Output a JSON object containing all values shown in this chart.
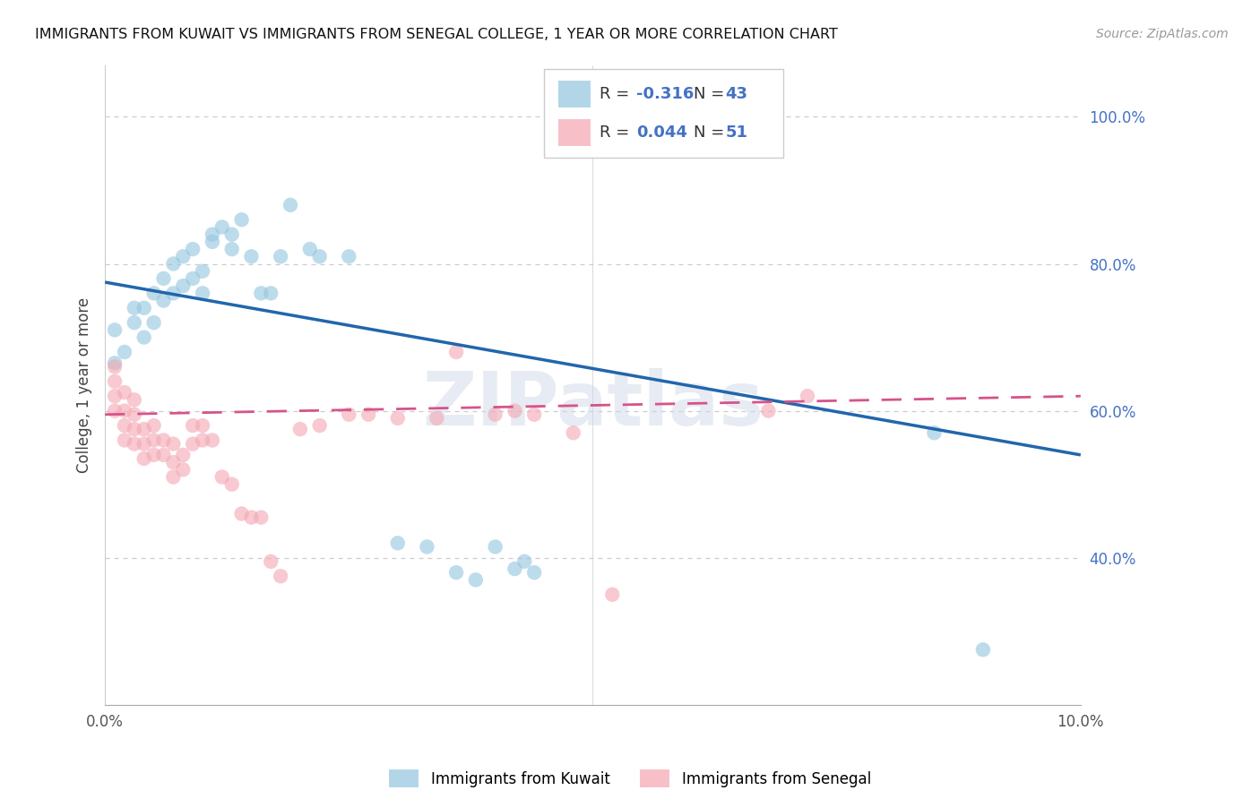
{
  "title": "IMMIGRANTS FROM KUWAIT VS IMMIGRANTS FROM SENEGAL COLLEGE, 1 YEAR OR MORE CORRELATION CHART",
  "source": "Source: ZipAtlas.com",
  "ylabel": "College, 1 year or more",
  "xlim": [
    0.0,
    0.1
  ],
  "ylim": [
    0.2,
    1.07
  ],
  "yticks": [
    0.4,
    0.6,
    0.8,
    1.0
  ],
  "ytick_labels": [
    "40.0%",
    "60.0%",
    "80.0%",
    "100.0%"
  ],
  "kuwait_R": "-0.316",
  "kuwait_N": "43",
  "senegal_R": "0.044",
  "senegal_N": "51",
  "kuwait_color": "#92c5de",
  "senegal_color": "#f4a6b2",
  "kuwait_line_color": "#2166ac",
  "senegal_line_color": "#d6538a",
  "background_color": "#ffffff",
  "watermark": "ZIPatlas",
  "kuwait_line_y0": 0.775,
  "kuwait_line_y1": 0.54,
  "senegal_line_y0": 0.595,
  "senegal_line_y1": 0.62,
  "kuwait_x": [
    0.001,
    0.002,
    0.001,
    0.003,
    0.003,
    0.004,
    0.004,
    0.005,
    0.005,
    0.006,
    0.006,
    0.007,
    0.007,
    0.008,
    0.008,
    0.009,
    0.009,
    0.01,
    0.01,
    0.011,
    0.011,
    0.012,
    0.013,
    0.013,
    0.014,
    0.015,
    0.016,
    0.017,
    0.018,
    0.019,
    0.021,
    0.022,
    0.025,
    0.03,
    0.033,
    0.036,
    0.038,
    0.04,
    0.042,
    0.043,
    0.044,
    0.085,
    0.09
  ],
  "kuwait_y": [
    0.665,
    0.68,
    0.71,
    0.72,
    0.74,
    0.7,
    0.74,
    0.72,
    0.76,
    0.75,
    0.78,
    0.76,
    0.8,
    0.77,
    0.81,
    0.78,
    0.82,
    0.76,
    0.79,
    0.83,
    0.84,
    0.85,
    0.82,
    0.84,
    0.86,
    0.81,
    0.76,
    0.76,
    0.81,
    0.88,
    0.82,
    0.81,
    0.81,
    0.42,
    0.415,
    0.38,
    0.37,
    0.415,
    0.385,
    0.395,
    0.38,
    0.57,
    0.275
  ],
  "senegal_x": [
    0.001,
    0.001,
    0.001,
    0.001,
    0.002,
    0.002,
    0.002,
    0.002,
    0.003,
    0.003,
    0.003,
    0.003,
    0.004,
    0.004,
    0.004,
    0.005,
    0.005,
    0.005,
    0.006,
    0.006,
    0.007,
    0.007,
    0.007,
    0.008,
    0.008,
    0.009,
    0.009,
    0.01,
    0.01,
    0.011,
    0.012,
    0.013,
    0.014,
    0.015,
    0.016,
    0.017,
    0.018,
    0.02,
    0.022,
    0.025,
    0.027,
    0.03,
    0.034,
    0.036,
    0.04,
    0.042,
    0.044,
    0.048,
    0.052,
    0.068,
    0.072
  ],
  "senegal_y": [
    0.6,
    0.62,
    0.64,
    0.66,
    0.56,
    0.58,
    0.6,
    0.625,
    0.555,
    0.575,
    0.595,
    0.615,
    0.535,
    0.555,
    0.575,
    0.54,
    0.56,
    0.58,
    0.54,
    0.56,
    0.51,
    0.53,
    0.555,
    0.52,
    0.54,
    0.555,
    0.58,
    0.56,
    0.58,
    0.56,
    0.51,
    0.5,
    0.46,
    0.455,
    0.455,
    0.395,
    0.375,
    0.575,
    0.58,
    0.595,
    0.595,
    0.59,
    0.59,
    0.68,
    0.595,
    0.6,
    0.595,
    0.57,
    0.35,
    0.6,
    0.62
  ]
}
